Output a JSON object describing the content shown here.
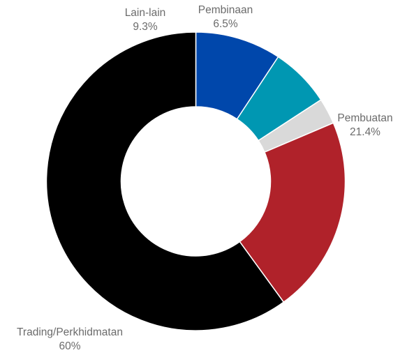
{
  "chart_data": {
    "type": "pie",
    "title": "",
    "series": [
      {
        "values": [
          9.3,
          6.5,
          2.8,
          21.4,
          60
        ]
      }
    ],
    "slices": [
      {
        "label": "Lain-lain",
        "value": 9.3,
        "display": "9.3%",
        "color": "#0047AB"
      },
      {
        "label": "Pembinaan",
        "value": 6.5,
        "display": "6.5%",
        "color": "#0097B2"
      },
      {
        "label": "",
        "value": 2.8,
        "display": "",
        "color": "#D9D9D9"
      },
      {
        "label": "Pembuatan",
        "value": 21.4,
        "display": "21.4%",
        "color": "#B0222A"
      },
      {
        "label": "Trading/Perkhidmatan",
        "value": 60,
        "display": "60%",
        "color": "#000000"
      }
    ],
    "start_angle_deg": 0,
    "direction": "clockwise",
    "hole": "donut",
    "legend": "none",
    "label_color": "#6B6B6B"
  }
}
